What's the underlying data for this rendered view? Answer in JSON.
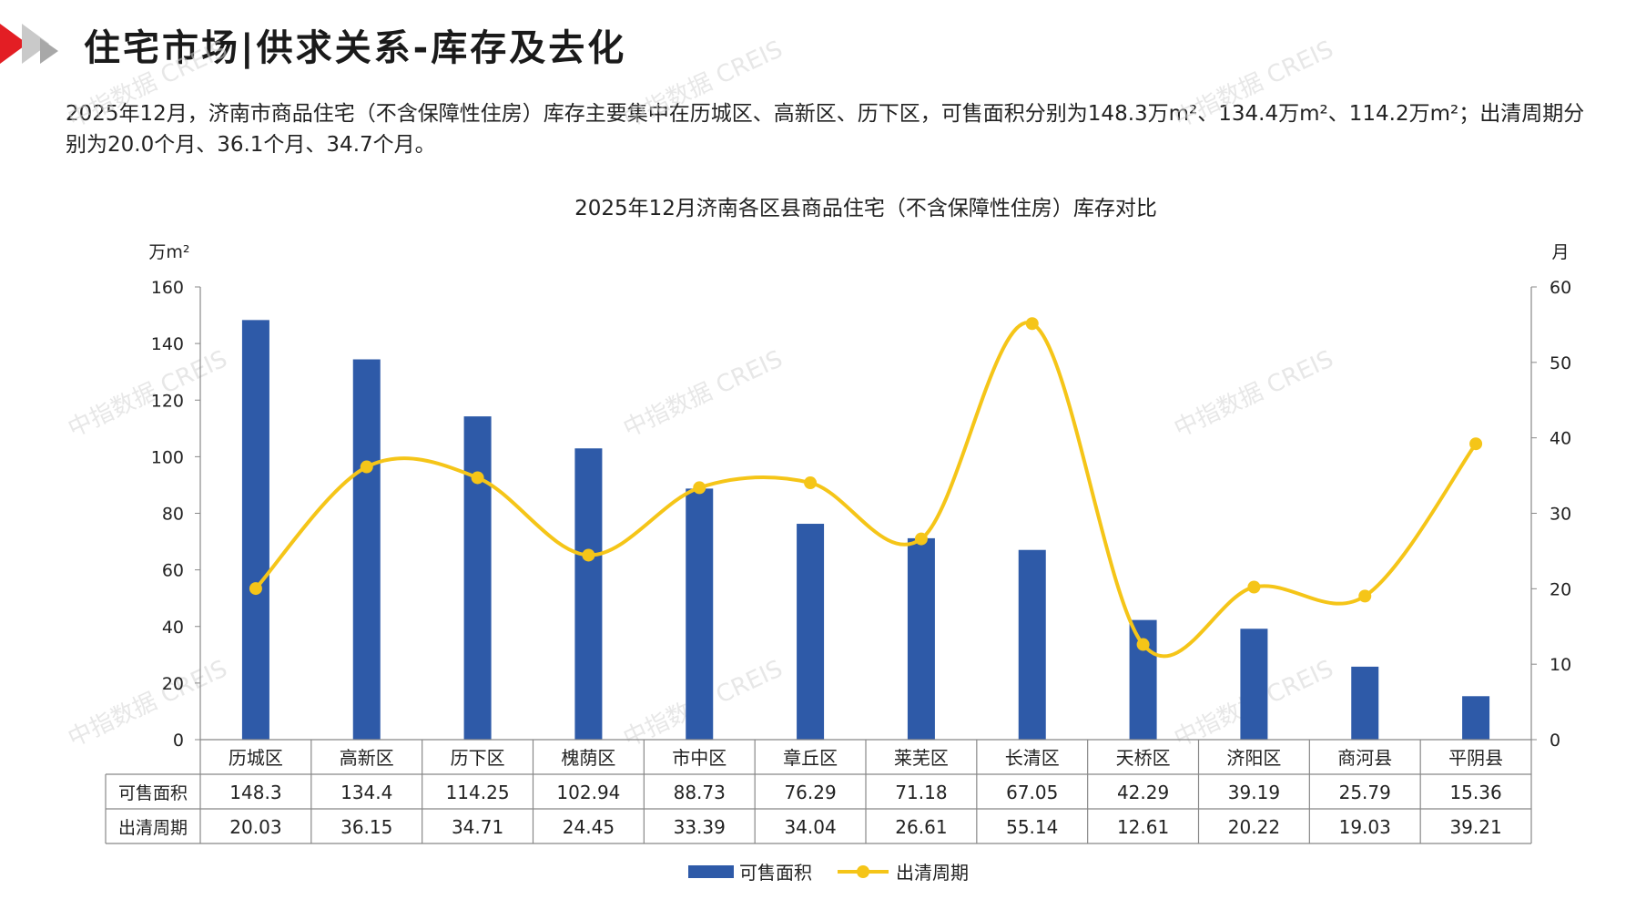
{
  "header": {
    "title": "住宅市场|供求关系-库存及去化"
  },
  "summary": "2025年12月，济南市商品住宅（不含保障性住房）库存主要集中在历城区、高新区、历下区，可售面积分别为148.3万m²、134.4万m²、114.2万m²；出清周期分别为20.0个月、36.1个月、34.7个月。",
  "watermark": "中指数据 CREIS",
  "chart_data": {
    "type": "bar",
    "title": "2025年12月济南各区县商品住宅（不含保障性住房）库存对比",
    "categories": [
      "历城区",
      "高新区",
      "历下区",
      "槐荫区",
      "市中区",
      "章丘区",
      "莱芜区",
      "长清区",
      "天桥区",
      "济阳区",
      "商河县",
      "平阴县"
    ],
    "series": [
      {
        "name": "可售面积",
        "type": "bar",
        "axis": "left",
        "color": "#2e5aa8",
        "values": [
          148.3,
          134.4,
          114.25,
          102.94,
          88.73,
          76.29,
          71.18,
          67.05,
          42.29,
          39.19,
          25.79,
          15.36
        ],
        "labels": [
          "148.3",
          "134.4",
          "114.25",
          "102.94",
          "88.73",
          "76.29",
          "71.18",
          "67.05",
          "42.29",
          "39.19",
          "25.79",
          "15.36"
        ]
      },
      {
        "name": "出清周期",
        "type": "line",
        "axis": "right",
        "color": "#f5c518",
        "values": [
          20.03,
          36.15,
          34.71,
          24.45,
          33.39,
          34.04,
          26.61,
          55.14,
          12.61,
          20.22,
          19.03,
          39.21
        ],
        "labels": [
          "20.03",
          "36.15",
          "34.71",
          "24.45",
          "33.39",
          "34.04",
          "26.61",
          "55.14",
          "12.61",
          "20.22",
          "19.03",
          "39.21"
        ]
      }
    ],
    "y_left": {
      "unit": "万m²",
      "ylim": [
        0,
        160
      ],
      "ticks": [
        "0",
        "20",
        "40",
        "60",
        "80",
        "100",
        "120",
        "140",
        "160"
      ]
    },
    "y_right": {
      "unit": "月",
      "ylim": [
        0,
        60
      ],
      "ticks": [
        "0",
        "10",
        "20",
        "30",
        "40",
        "50",
        "60"
      ]
    },
    "grid": false,
    "legend": "bottom-center",
    "data_table": true
  }
}
